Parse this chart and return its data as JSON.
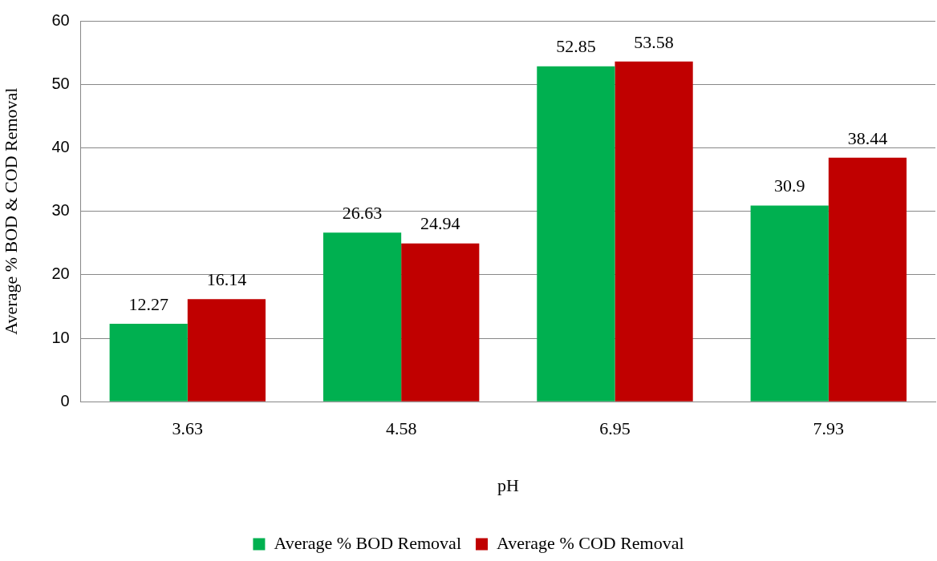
{
  "chart_data": {
    "type": "bar",
    "xlabel": "pH",
    "ylabel": "Average % BOD & COD Removal",
    "categories": [
      "3.63",
      "4.58",
      "6.95",
      "7.93"
    ],
    "series": [
      {
        "name": "Average % BOD Removal",
        "color": "#00b050",
        "values": [
          12.27,
          26.63,
          52.85,
          30.9
        ]
      },
      {
        "name": "Average % COD Removal",
        "color": "#c00000",
        "values": [
          16.14,
          24.94,
          53.58,
          38.44
        ]
      }
    ],
    "ylim": [
      0,
      60
    ],
    "yticks": [
      0,
      10,
      20,
      30,
      40,
      50,
      60
    ],
    "grid": "y",
    "legend": "bottom",
    "data_labels": true
  }
}
